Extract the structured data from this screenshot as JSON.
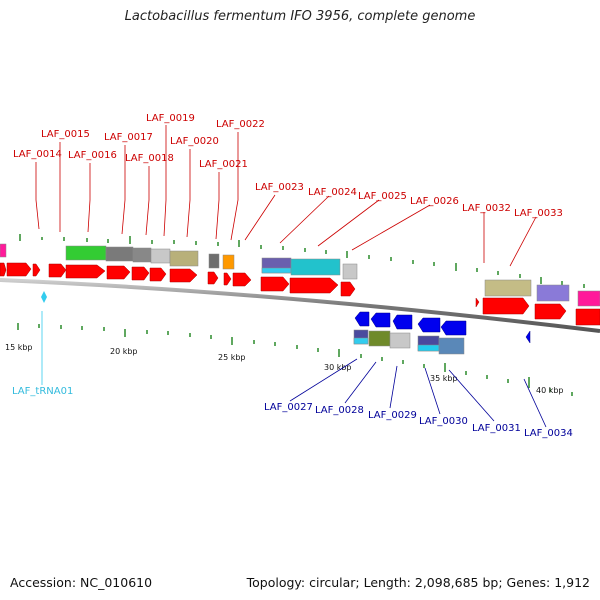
{
  "title": "Lactobacillus fermentum IFO 3956, complete genome",
  "footer": {
    "accession": "Accession: NC_010610",
    "topology": "Topology: circular; Length: 2,098,685 bp; Genes: 1,912"
  },
  "colors": {
    "forward_gene": "#ff0000",
    "reverse_gene": "#0000ff",
    "forward_label": "#cc0000",
    "reverse_label": "#000099",
    "trna": "#33ccee",
    "backbone": "#777777",
    "tick": "#2a8a2a"
  },
  "scale_labels": [
    "15 kbp",
    "20 kbp",
    "25 kbp",
    "30 kbp",
    "35 kbp",
    "40 kbp"
  ],
  "forward_genes": [
    "LAF_0014",
    "LAF_0015",
    "LAF_0016",
    "LAF_0017",
    "LAF_0018",
    "LAF_0019",
    "LAF_0020",
    "LAF_0021",
    "LAF_0022",
    "LAF_0023",
    "LAF_0024",
    "LAF_0025",
    "LAF_0026",
    "LAF_0032",
    "LAF_0033"
  ],
  "reverse_genes": [
    "LAF_0027",
    "LAF_0028",
    "LAF_0029",
    "LAF_0030",
    "LAF_0031",
    "LAF_0034"
  ],
  "trna_genes": [
    "LAF_tRNA01"
  ]
}
